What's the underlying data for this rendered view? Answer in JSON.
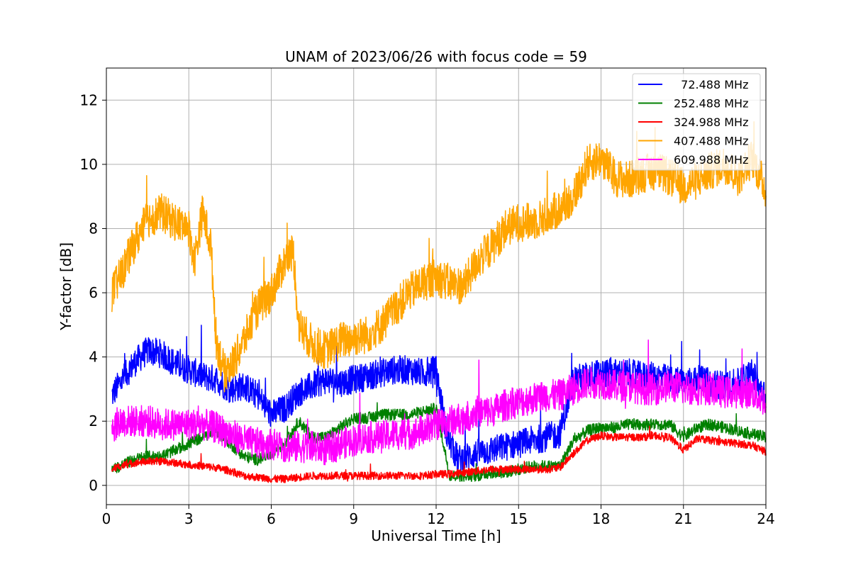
{
  "chart_data": {
    "type": "line",
    "title": "UNAM of 2023/06/26 with focus code = 59",
    "xlabel": "Universal Time [h]",
    "ylabel": "Y-factor [dB]",
    "xlim": [
      0,
      24
    ],
    "ylim": [
      -0.6,
      13.0
    ],
    "xticks": [
      0,
      3,
      6,
      9,
      12,
      15,
      18,
      21,
      24
    ],
    "yticks": [
      0,
      2,
      4,
      6,
      8,
      10,
      12
    ],
    "grid": true,
    "legend_position": "top-right",
    "series": [
      {
        "name": "  72.488 MHz",
        "color": "#0000ff",
        "noise": 0.45,
        "x": [
          0.2,
          0.5,
          1.0,
          1.5,
          2.0,
          2.5,
          3.0,
          3.5,
          4.0,
          4.5,
          5.0,
          5.5,
          6.0,
          6.5,
          7.0,
          7.5,
          8.0,
          8.5,
          9.0,
          9.5,
          10.0,
          10.5,
          11.0,
          11.5,
          12.0,
          12.4,
          12.8,
          13.5,
          14.0,
          14.5,
          15.0,
          15.5,
          16.0,
          16.5,
          17.0,
          17.5,
          18.0,
          18.5,
          19.0,
          19.5,
          20.0,
          20.5,
          21.0,
          21.5,
          22.0,
          22.5,
          23.0,
          23.5,
          24.0
        ],
        "y": [
          2.8,
          3.2,
          3.8,
          4.2,
          4.1,
          3.8,
          3.6,
          3.4,
          3.3,
          3.0,
          3.1,
          2.8,
          2.2,
          2.4,
          2.9,
          3.1,
          3.3,
          3.2,
          3.3,
          3.4,
          3.5,
          3.6,
          3.6,
          3.5,
          3.6,
          1.5,
          0.8,
          1.0,
          1.1,
          1.2,
          1.3,
          1.4,
          1.5,
          1.6,
          3.3,
          3.4,
          3.5,
          3.5,
          3.5,
          3.4,
          3.4,
          3.3,
          3.2,
          3.3,
          3.2,
          3.1,
          3.2,
          3.5,
          2.8
        ]
      },
      {
        "name": "252.488 MHz",
        "color": "#008000",
        "noise": 0.18,
        "x": [
          0.2,
          0.5,
          1.0,
          1.5,
          2.0,
          2.5,
          3.0,
          3.5,
          4.0,
          4.5,
          5.0,
          5.5,
          6.0,
          6.5,
          7.0,
          7.5,
          8.0,
          8.5,
          9.0,
          9.5,
          10.0,
          10.5,
          11.0,
          11.5,
          12.0,
          12.5,
          13.0,
          13.5,
          14.0,
          14.5,
          15.0,
          15.5,
          16.0,
          16.5,
          17.0,
          17.5,
          18.0,
          18.5,
          19.0,
          19.5,
          20.0,
          20.5,
          21.0,
          21.5,
          22.0,
          22.5,
          23.0,
          23.5,
          24.0
        ],
        "y": [
          0.5,
          0.6,
          0.8,
          0.9,
          0.9,
          1.1,
          1.3,
          1.5,
          1.7,
          1.3,
          0.9,
          0.8,
          1.0,
          1.3,
          2.0,
          1.5,
          1.5,
          1.8,
          2.1,
          2.1,
          2.2,
          2.2,
          2.2,
          2.3,
          2.4,
          0.3,
          0.3,
          0.3,
          0.4,
          0.4,
          0.5,
          0.6,
          0.6,
          0.6,
          1.4,
          1.7,
          1.8,
          1.8,
          1.9,
          1.9,
          1.9,
          1.9,
          1.5,
          1.8,
          1.9,
          1.8,
          1.7,
          1.6,
          1.5
        ]
      },
      {
        "name": "324.988 MHz",
        "color": "#ff0000",
        "noise": 0.12,
        "x": [
          0.2,
          0.5,
          1.0,
          1.5,
          2.0,
          2.5,
          3.0,
          3.5,
          4.0,
          4.5,
          5.0,
          5.5,
          6.0,
          6.5,
          7.0,
          7.5,
          8.0,
          8.5,
          9.0,
          9.5,
          10.0,
          10.5,
          11.0,
          11.5,
          12.0,
          12.5,
          13.0,
          13.5,
          14.0,
          14.5,
          15.0,
          15.5,
          16.0,
          16.5,
          17.0,
          17.5,
          18.0,
          18.5,
          19.0,
          19.5,
          20.0,
          20.5,
          21.0,
          21.5,
          22.0,
          22.5,
          23.0,
          23.5,
          24.0
        ],
        "y": [
          0.5,
          0.6,
          0.7,
          0.75,
          0.75,
          0.7,
          0.65,
          0.6,
          0.55,
          0.45,
          0.3,
          0.25,
          0.2,
          0.2,
          0.25,
          0.3,
          0.3,
          0.3,
          0.3,
          0.3,
          0.3,
          0.3,
          0.3,
          0.3,
          0.35,
          0.35,
          0.4,
          0.45,
          0.5,
          0.5,
          0.5,
          0.5,
          0.5,
          0.55,
          1.0,
          1.4,
          1.55,
          1.5,
          1.5,
          1.5,
          1.55,
          1.5,
          1.1,
          1.45,
          1.4,
          1.35,
          1.3,
          1.25,
          1.05
        ]
      },
      {
        "name": "407.488 MHz",
        "color": "#ffa500",
        "noise": 0.6,
        "x": [
          0.2,
          0.5,
          1.0,
          1.5,
          2.0,
          2.5,
          3.0,
          3.2,
          3.5,
          3.8,
          4.0,
          4.3,
          4.6,
          5.0,
          5.5,
          6.0,
          6.5,
          6.8,
          7.0,
          7.5,
          8.0,
          8.5,
          9.0,
          9.5,
          10.0,
          10.5,
          11.0,
          11.5,
          12.0,
          12.5,
          13.0,
          13.5,
          14.0,
          14.5,
          15.0,
          15.5,
          16.0,
          16.5,
          17.0,
          17.5,
          18.0,
          18.5,
          19.0,
          19.5,
          20.0,
          20.5,
          21.0,
          21.5,
          22.0,
          22.5,
          23.0,
          23.5,
          24.0
        ],
        "y": [
          6.0,
          6.5,
          7.5,
          8.3,
          8.5,
          8.2,
          8.0,
          7.0,
          8.5,
          7.5,
          4.5,
          3.5,
          3.8,
          4.5,
          5.5,
          6.0,
          7.0,
          7.3,
          5.0,
          4.4,
          4.2,
          4.5,
          4.6,
          4.7,
          5.0,
          5.5,
          6.0,
          6.3,
          6.5,
          6.3,
          6.2,
          7.0,
          7.4,
          8.0,
          8.2,
          8.2,
          8.4,
          8.6,
          9.0,
          10.0,
          10.2,
          9.6,
          9.5,
          9.7,
          9.8,
          9.6,
          9.3,
          9.5,
          9.8,
          10.0,
          9.6,
          10.2,
          9.2
        ]
      },
      {
        "name": "609.988 MHz",
        "color": "#ff00ff",
        "noise": 0.5,
        "x": [
          0.2,
          0.5,
          1.0,
          1.5,
          2.0,
          2.5,
          3.0,
          3.5,
          4.0,
          4.5,
          5.0,
          5.5,
          6.0,
          6.5,
          7.0,
          7.5,
          8.0,
          8.5,
          9.0,
          9.5,
          10.0,
          10.5,
          11.0,
          11.5,
          12.0,
          12.5,
          13.0,
          13.5,
          14.0,
          14.5,
          15.0,
          15.5,
          16.0,
          16.5,
          17.0,
          17.5,
          18.0,
          18.5,
          19.0,
          19.5,
          20.0,
          20.5,
          21.0,
          21.5,
          22.0,
          22.5,
          23.0,
          23.5,
          24.0
        ],
        "y": [
          1.8,
          2.0,
          2.0,
          2.0,
          1.9,
          1.9,
          1.9,
          1.9,
          1.8,
          1.6,
          1.4,
          1.3,
          1.3,
          1.2,
          1.2,
          1.2,
          1.1,
          1.3,
          1.4,
          1.5,
          1.5,
          1.6,
          1.6,
          1.7,
          1.9,
          2.0,
          2.1,
          2.3,
          2.3,
          2.5,
          2.6,
          2.7,
          2.8,
          2.8,
          3.0,
          3.2,
          3.2,
          3.1,
          3.1,
          3.0,
          3.0,
          3.1,
          3.0,
          3.0,
          3.0,
          2.9,
          2.9,
          2.9,
          2.6
        ]
      }
    ]
  }
}
